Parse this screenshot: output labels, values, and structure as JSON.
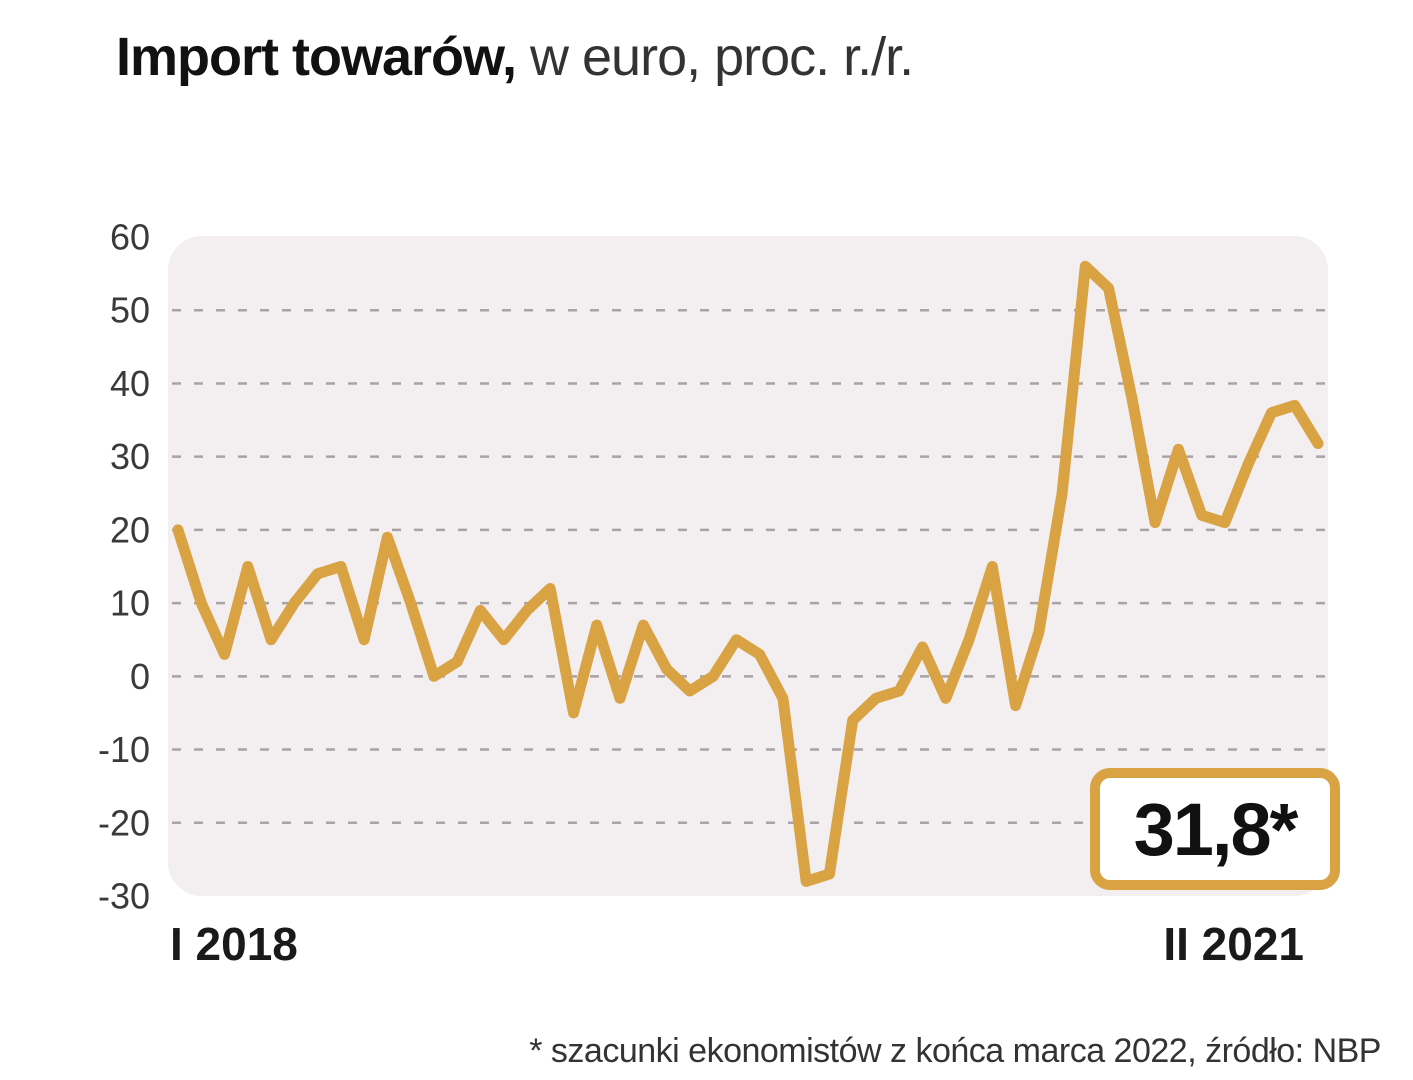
{
  "title": {
    "bold": "Import towarów,",
    "rest": "w euro, proc. r./r."
  },
  "colors": {
    "line": "#d9a344",
    "plot_background": "#f3eef0",
    "grid": "#a9a3a6",
    "text": "#1a1a1a"
  },
  "callout": {
    "value_text": "31,8*"
  },
  "footnote": "* szacunki ekonomistów z końca marca 2022, źródło: NBP",
  "chart_data": {
    "type": "line",
    "title": "Import towarów, w euro, proc. r./r.",
    "xlabel": "",
    "ylabel": "",
    "ylim": [
      -30,
      60
    ],
    "yticks": [
      60,
      50,
      40,
      30,
      20,
      10,
      0,
      -10,
      -20,
      -30
    ],
    "ytick_labels": [
      "60",
      "50",
      "40",
      "30",
      "20",
      "10",
      "0",
      "-10",
      "-20",
      "-30"
    ],
    "x_start_label": "I 2018",
    "x_end_label": "II 2021",
    "grid": "horizontal dashed",
    "series": [
      {
        "values": [
          20,
          10,
          3,
          15,
          5,
          10,
          14,
          15,
          5,
          19,
          10,
          0,
          2,
          9,
          5,
          9,
          12,
          -5,
          7,
          -3,
          7,
          1,
          -2,
          0,
          5,
          3,
          -3,
          -28,
          -27,
          -6,
          -3,
          -2,
          4,
          -3,
          5,
          15,
          -4,
          6,
          25,
          56,
          53,
          38,
          21,
          31,
          22,
          21,
          29,
          36,
          37,
          31.8
        ]
      }
    ]
  }
}
